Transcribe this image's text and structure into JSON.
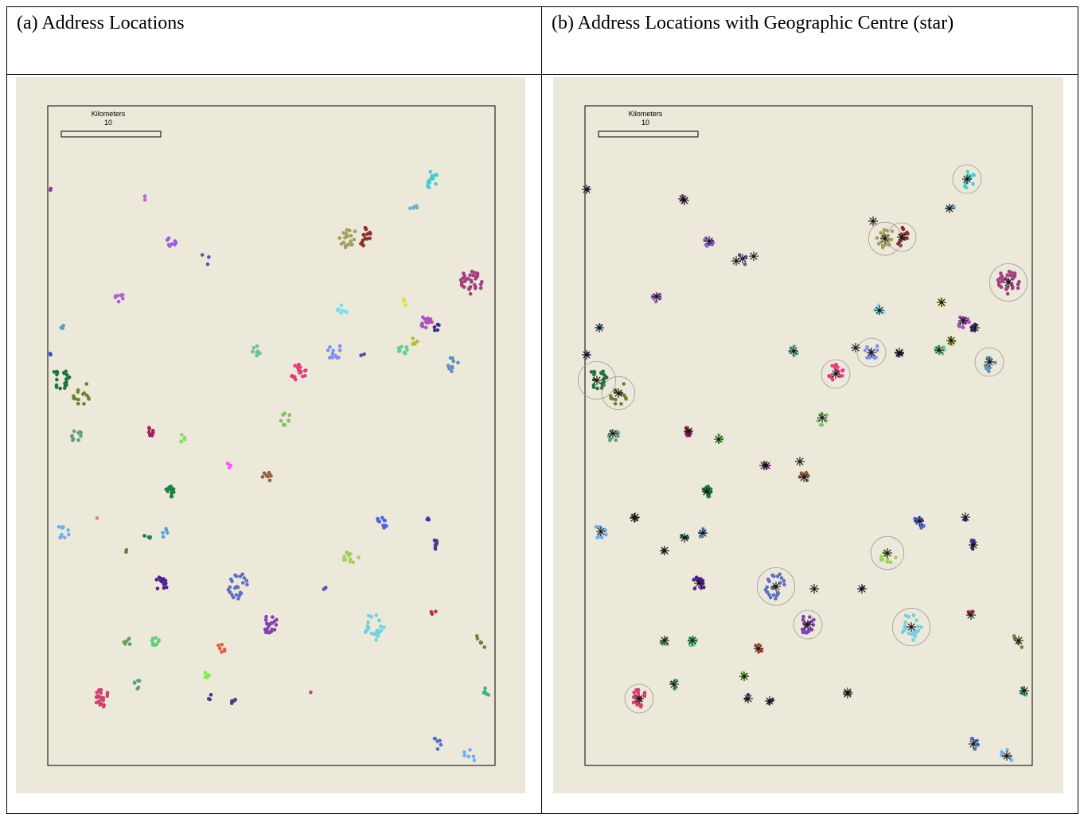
{
  "panels": [
    {
      "caption": "(a) Address Locations",
      "scale_label": "Kilometers",
      "scale_value": 10
    },
    {
      "caption": "(b) Address Locations with Geographic Centre (star)",
      "scale_label": "Kilometers",
      "scale_value": 10
    }
  ]
}
